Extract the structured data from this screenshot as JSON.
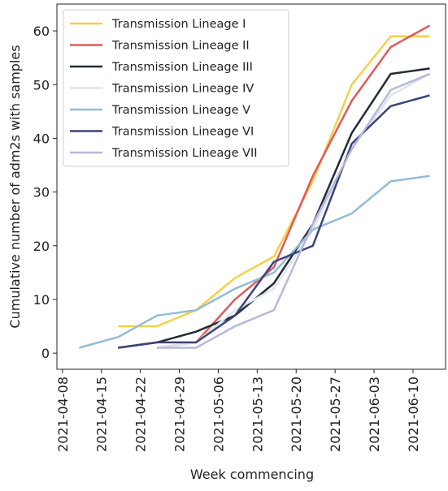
{
  "chart_data": {
    "type": "line",
    "x_label": "Week commencing",
    "y_label": "Cumulative number of adm2s with samples",
    "x": [
      "2021-04-11",
      "2021-04-18",
      "2021-04-25",
      "2021-05-02",
      "2021-05-09",
      "2021-05-16",
      "2021-05-23",
      "2021-05-30",
      "2021-06-06",
      "2021-06-13"
    ],
    "xlim": [
      "2021-04-07",
      "2021-06-16"
    ],
    "xticks": [
      "2021-04-08",
      "2021-04-15",
      "2021-04-22",
      "2021-04-29",
      "2021-05-06",
      "2021-05-13",
      "2021-05-20",
      "2021-05-27",
      "2021-06-03",
      "2021-06-10"
    ],
    "ylim": [
      -3,
      65
    ],
    "yticks": [
      0,
      10,
      20,
      30,
      40,
      50,
      60
    ],
    "legend": "upper left",
    "series": [
      {
        "name": "Transmission Lineage I",
        "color": "#f5d04a",
        "values": [
          null,
          5,
          5,
          8,
          14,
          18,
          32,
          50,
          59,
          59
        ]
      },
      {
        "name": "Transmission Lineage II",
        "color": "#e05a5a",
        "values": [
          null,
          null,
          1,
          2,
          10,
          16,
          33,
          47,
          57,
          61
        ]
      },
      {
        "name": "Transmission Lineage III",
        "color": "#222b38",
        "values": [
          null,
          1,
          2,
          4,
          7,
          13,
          24,
          41,
          52,
          53
        ]
      },
      {
        "name": "Transmission Lineage IV",
        "color": "#dce6f0",
        "values": [
          null,
          null,
          1,
          2,
          8,
          12,
          23,
          38,
          48,
          52
        ]
      },
      {
        "name": "Transmission Lineage V",
        "color": "#92bcd6",
        "values": [
          1,
          3,
          7,
          8,
          12,
          15,
          23,
          26,
          32,
          33
        ]
      },
      {
        "name": "Transmission Lineage VI",
        "color": "#3c4477",
        "values": [
          null,
          1,
          2,
          2,
          7,
          17,
          20,
          39,
          46,
          48
        ]
      },
      {
        "name": "Transmission Lineage VII",
        "color": "#b8b8dc",
        "values": [
          null,
          null,
          1,
          1,
          5,
          8,
          24,
          38,
          49,
          52
        ]
      }
    ]
  }
}
